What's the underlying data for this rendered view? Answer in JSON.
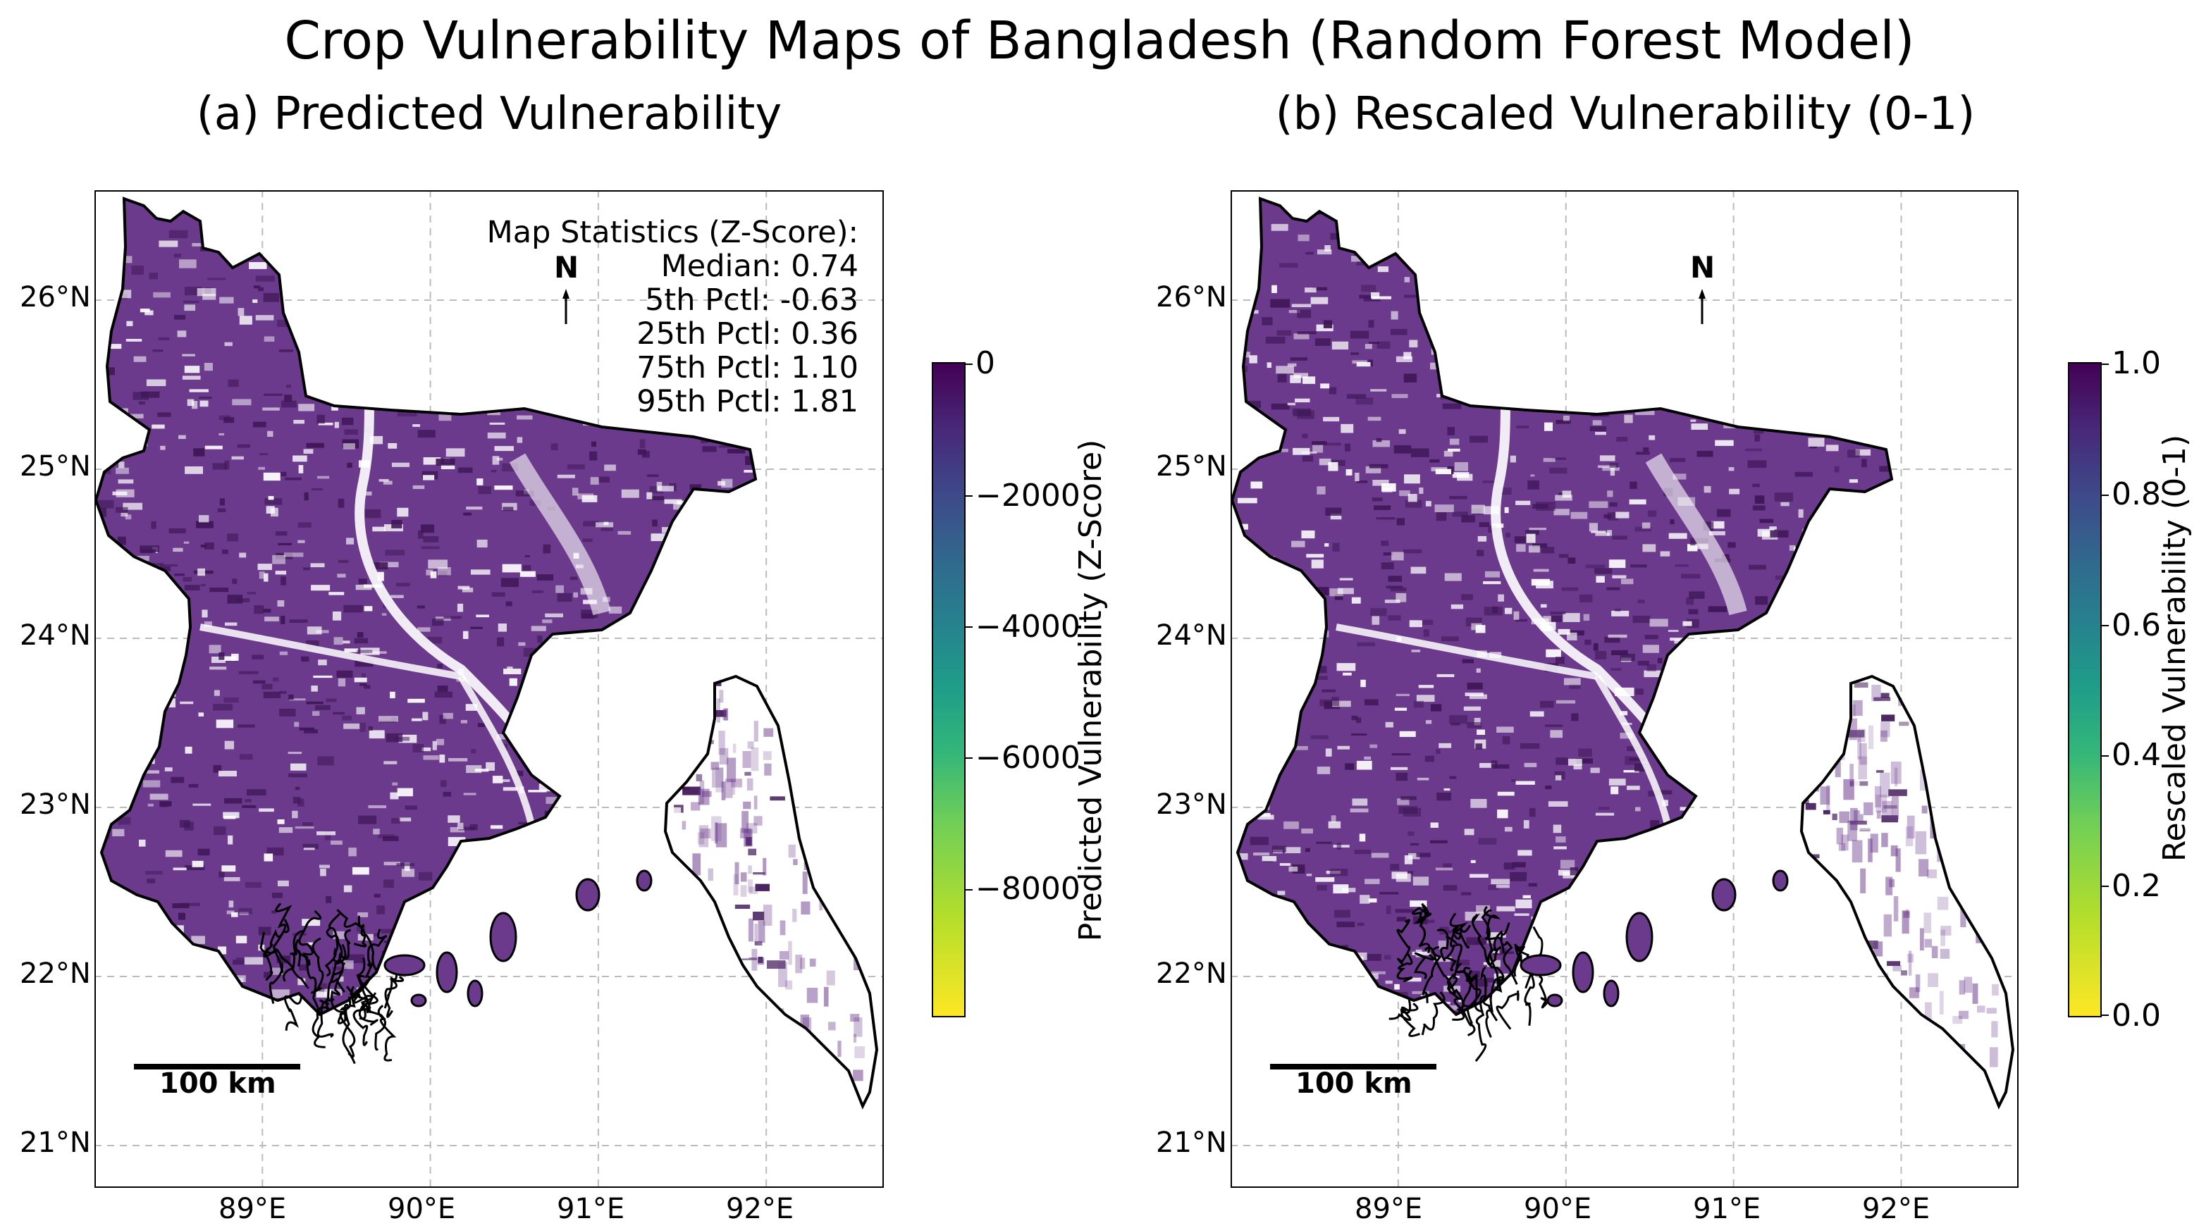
{
  "title": "Crop Vulnerability Maps of Bangladesh (Random Forest Model)",
  "panels": [
    {
      "subtitle": "(a) Predicted Vulnerability",
      "stats": {
        "heading": "Map Statistics (Z-Score):",
        "lines": [
          "Median: 0.74",
          "5th Pctl: -0.63",
          "25th Pctl: 0.36",
          "75th Pctl: 1.10",
          "95th Pctl: 1.81"
        ]
      },
      "colorbar": {
        "label": "Predicted Vulnerability (Z-Score)",
        "ticks": [
          "0",
          "−2000",
          "−4000",
          "−6000",
          "−8000"
        ],
        "range": [
          -9800,
          0
        ]
      }
    },
    {
      "subtitle": "(b) Rescaled Vulnerability (0-1)",
      "colorbar": {
        "label": "Rescaled Vulnerability (0-1)",
        "ticks": [
          "1.0",
          "0.8",
          "0.6",
          "0.4",
          "0.2",
          "0.0"
        ],
        "range": [
          0,
          1
        ]
      }
    }
  ],
  "axes": {
    "lat_ticks": [
      "26°N",
      "25°N",
      "24°N",
      "23°N",
      "22°N",
      "21°N"
    ],
    "lon_ticks": [
      "89°E",
      "90°E",
      "91°E",
      "92°E"
    ],
    "lon_range": [
      88.0,
      92.7
    ],
    "lat_range": [
      20.75,
      26.65
    ]
  },
  "north_arrow": "N",
  "scale_bar": "100 km",
  "colors": {
    "fill": "#6b3a8c",
    "fill_dark": "#3f1657",
    "outline": "#000000",
    "grid": "#bbbbbb",
    "colormap": "viridis"
  }
}
